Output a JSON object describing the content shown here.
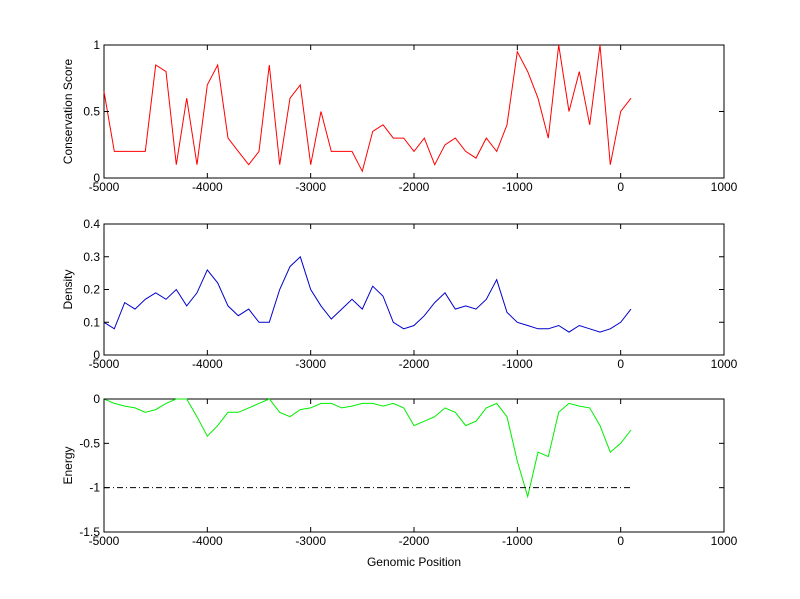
{
  "chart_data": [
    {
      "type": "line",
      "ylabel": "Conservation Score",
      "x": [
        -5000,
        -4900,
        -4800,
        -4700,
        -4600,
        -4500,
        -4400,
        -4300,
        -4200,
        -4100,
        -4000,
        -3900,
        -3800,
        -3700,
        -3600,
        -3500,
        -3400,
        -3300,
        -3200,
        -3100,
        -3000,
        -2900,
        -2800,
        -2700,
        -2600,
        -2500,
        -2400,
        -2300,
        -2200,
        -2100,
        -2000,
        -1900,
        -1800,
        -1700,
        -1600,
        -1500,
        -1400,
        -1300,
        -1200,
        -1100,
        -1000,
        -900,
        -800,
        -700,
        -600,
        -500,
        -400,
        -300,
        -200,
        -100,
        0,
        100
      ],
      "series": [
        {
          "color": "#ff0000",
          "values": [
            0.65,
            0.2,
            0.2,
            0.2,
            0.2,
            0.85,
            0.8,
            0.1,
            0.6,
            0.1,
            0.7,
            0.85,
            0.3,
            0.2,
            0.1,
            0.2,
            0.85,
            0.1,
            0.6,
            0.7,
            0.1,
            0.5,
            0.2,
            0.2,
            0.2,
            0.05,
            0.35,
            0.4,
            0.3,
            0.3,
            0.2,
            0.3,
            0.1,
            0.25,
            0.3,
            0.2,
            0.15,
            0.3,
            0.2,
            0.4,
            0.95,
            0.8,
            0.6,
            0.3,
            1,
            0.5,
            0.8,
            0.4,
            1,
            0.1,
            0.5,
            0.6
          ]
        }
      ],
      "xlim": [
        -5000,
        1000
      ],
      "xticks": [
        -5000,
        -4000,
        -3000,
        -2000,
        -1000,
        0,
        1000
      ],
      "ylim": [
        0,
        1
      ],
      "yticks": [
        0,
        0.5,
        1
      ]
    },
    {
      "type": "line",
      "ylabel": "Density",
      "x": [
        -5000,
        -4900,
        -4800,
        -4700,
        -4600,
        -4500,
        -4400,
        -4300,
        -4200,
        -4100,
        -4000,
        -3900,
        -3800,
        -3700,
        -3600,
        -3500,
        -3400,
        -3300,
        -3200,
        -3100,
        -3000,
        -2900,
        -2800,
        -2700,
        -2600,
        -2500,
        -2400,
        -2300,
        -2200,
        -2100,
        -2000,
        -1900,
        -1800,
        -1700,
        -1600,
        -1500,
        -1400,
        -1300,
        -1200,
        -1100,
        -1000,
        -900,
        -800,
        -700,
        -600,
        -500,
        -400,
        -300,
        -200,
        -100,
        0,
        100
      ],
      "series": [
        {
          "color": "#0000cc",
          "values": [
            0.1,
            0.08,
            0.16,
            0.14,
            0.17,
            0.19,
            0.17,
            0.2,
            0.15,
            0.19,
            0.26,
            0.22,
            0.15,
            0.12,
            0.14,
            0.1,
            0.1,
            0.2,
            0.27,
            0.3,
            0.2,
            0.15,
            0.11,
            0.14,
            0.17,
            0.14,
            0.21,
            0.18,
            0.1,
            0.08,
            0.09,
            0.12,
            0.16,
            0.19,
            0.14,
            0.15,
            0.14,
            0.17,
            0.23,
            0.13,
            0.1,
            0.09,
            0.08,
            0.08,
            0.09,
            0.07,
            0.09,
            0.08,
            0.07,
            0.08,
            0.1,
            0.14
          ]
        }
      ],
      "xlim": [
        -5000,
        1000
      ],
      "xticks": [
        -5000,
        -4000,
        -3000,
        -2000,
        -1000,
        0,
        1000
      ],
      "ylim": [
        0,
        0.4
      ],
      "yticks": [
        0,
        0.1,
        0.2,
        0.3,
        0.4
      ]
    },
    {
      "type": "line",
      "ylabel": "Energy",
      "xlabel": "Genomic Position",
      "x": [
        -5000,
        -4900,
        -4800,
        -4700,
        -4600,
        -4500,
        -4400,
        -4300,
        -4200,
        -4100,
        -4000,
        -3900,
        -3800,
        -3700,
        -3600,
        -3500,
        -3400,
        -3300,
        -3200,
        -3100,
        -3000,
        -2900,
        -2800,
        -2700,
        -2600,
        -2500,
        -2400,
        -2300,
        -2200,
        -2100,
        -2000,
        -1900,
        -1800,
        -1700,
        -1600,
        -1500,
        -1400,
        -1300,
        -1200,
        -1100,
        -1000,
        -900,
        -800,
        -700,
        -600,
        -500,
        -400,
        -300,
        -200,
        -100,
        0,
        100
      ],
      "series": [
        {
          "color": "#00ee00",
          "values": [
            0,
            -0.05,
            -0.08,
            -0.1,
            -0.15,
            -0.12,
            -0.05,
            0,
            0,
            -0.2,
            -0.42,
            -0.3,
            -0.15,
            -0.15,
            -0.1,
            -0.05,
            0,
            -0.15,
            -0.2,
            -0.12,
            -0.1,
            -0.05,
            -0.05,
            -0.1,
            -0.08,
            -0.05,
            -0.05,
            -0.08,
            -0.05,
            -0.1,
            -0.3,
            -0.25,
            -0.2,
            -0.1,
            -0.15,
            -0.3,
            -0.25,
            -0.1,
            -0.05,
            -0.2,
            -0.7,
            -1.1,
            -0.6,
            -0.65,
            -0.15,
            -0.05,
            -0.08,
            -0.1,
            -0.3,
            -0.6,
            -0.5,
            -0.35
          ]
        }
      ],
      "hline": {
        "value": -1,
        "from": -5000,
        "to": 100,
        "style": "dash-dot",
        "color": "#000000"
      },
      "xlim": [
        -5000,
        1000
      ],
      "xticks": [
        -5000,
        -4000,
        -3000,
        -2000,
        -1000,
        0,
        1000
      ],
      "ylim": [
        -1.5,
        0
      ],
      "yticks": [
        -1.5,
        -1,
        -0.5,
        0
      ]
    }
  ]
}
